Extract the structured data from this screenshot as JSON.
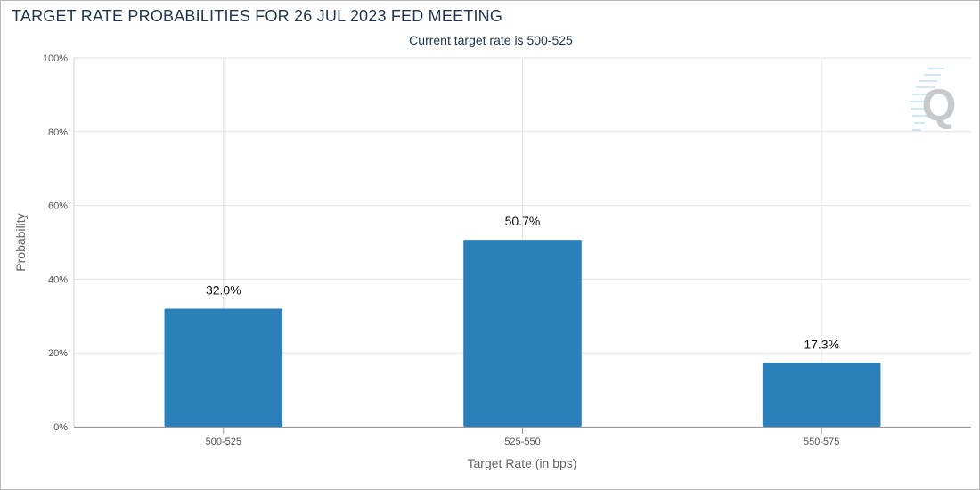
{
  "chart_data": {
    "type": "bar",
    "title": "TARGET RATE PROBABILITIES FOR 26 JUL 2023 FED MEETING",
    "subtitle": "Current target rate is 500-525",
    "xlabel": "Target Rate (in bps)",
    "ylabel": "Probability",
    "categories": [
      "500-525",
      "525-550",
      "550-575"
    ],
    "values": [
      32.0,
      50.7,
      17.3
    ],
    "data_labels": [
      "32.0%",
      "50.7%",
      "17.3%"
    ],
    "ylim": [
      0,
      100
    ],
    "yticks": [
      0,
      20,
      40,
      60,
      80,
      100
    ],
    "ytick_labels": [
      "0%",
      "20%",
      "40%",
      "60%",
      "80%",
      "100%"
    ],
    "grid": true,
    "bar_color": "#2b80b9"
  },
  "watermark": {
    "icon": "q-logo-icon",
    "letter": "Q"
  }
}
